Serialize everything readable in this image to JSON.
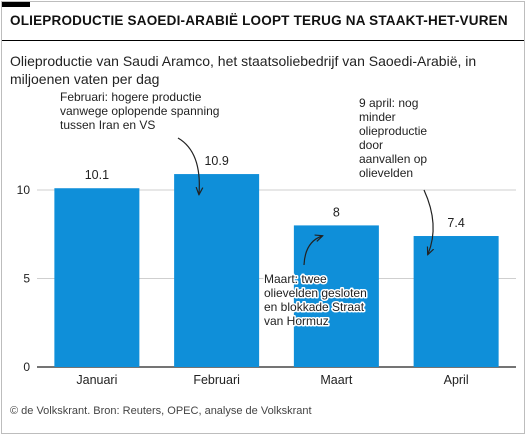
{
  "header": {
    "title": "OLIEPRODUCTIE SAOEDI-ARABIË LOOPT TERUG NA STAAKT-HET-VUREN",
    "subtitle": "Olieproductie van Saudi Aramco, het staatsoliebedrijf van Saoedi-Arabië, in miljoenen vaten per dag"
  },
  "footer": {
    "credit": "© de Volkskrant. Bron: Reuters, OPEC, analyse de Volkskrant"
  },
  "colors": {
    "bar": "#0f8fd9",
    "gridline": "#cfcfcf",
    "axis": "#222222"
  },
  "chart_data": {
    "type": "bar",
    "categories": [
      "Januari",
      "Februari",
      "Maart",
      "April"
    ],
    "values": [
      10.1,
      10.9,
      8,
      7.4
    ],
    "value_labels": [
      "10.1",
      "10.9",
      "8",
      "7.4"
    ],
    "ylim": [
      0,
      12
    ],
    "yticks": [
      0,
      5,
      10
    ],
    "grid": true,
    "xlabel": "",
    "ylabel": "",
    "annotations": [
      {
        "category": "Februari",
        "lines": [
          "Februari: hogere productie",
          "vanwege oplopende spanning",
          "tussen Iran en VS"
        ]
      },
      {
        "category": "Maart",
        "lines": [
          "Maart: twee",
          "olievelden gesloten",
          "en blokkade Straat",
          "van Hormuz"
        ]
      },
      {
        "category": "April",
        "lines": [
          "9 april: nog",
          "minder",
          "olieproductie",
          "door",
          "aanvallen op",
          "olievelden"
        ]
      }
    ]
  }
}
